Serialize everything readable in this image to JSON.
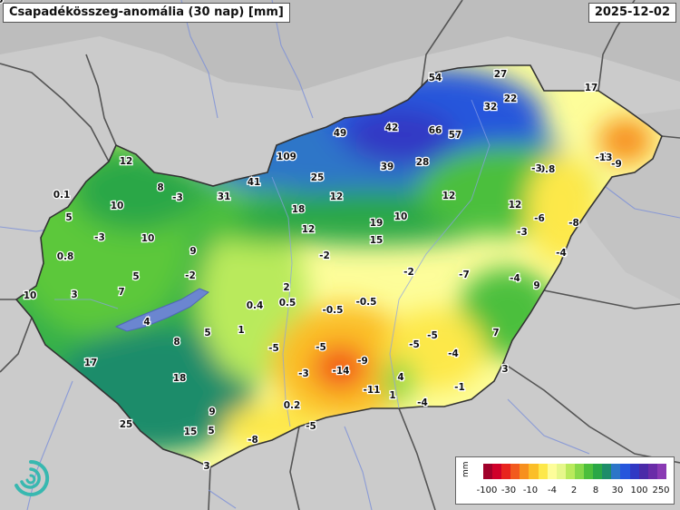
{
  "header": {
    "title": "Csapadékösszeg-anomália (30 nap) [mm]",
    "date": "2025-12-02"
  },
  "legend": {
    "unit": "mm",
    "colors": [
      "#a0002a",
      "#d0002a",
      "#e8241e",
      "#f25a1e",
      "#f7901e",
      "#fbbe28",
      "#fde84a",
      "#fdfd9a",
      "#e6f78a",
      "#b9ea5c",
      "#86d94a",
      "#4cbf3c",
      "#2aa746",
      "#1e8c6a",
      "#2d76c8",
      "#2656dc",
      "#3038c4",
      "#4a2aa8",
      "#6a2ca8",
      "#8a3ab4"
    ],
    "ticks": [
      "-100",
      "-30",
      "-10",
      "-4",
      "2",
      "8",
      "30",
      "100",
      "250"
    ]
  },
  "values": [
    {
      "t": "54"
    },
    {
      "t": "27"
    },
    {
      "t": "17"
    },
    {
      "t": "22"
    },
    {
      "t": "32"
    },
    {
      "t": "42"
    },
    {
      "t": "49"
    },
    {
      "t": "66"
    },
    {
      "t": "57"
    },
    {
      "t": "109"
    },
    {
      "t": "39"
    },
    {
      "t": "28"
    },
    {
      "t": "12"
    },
    {
      "t": "25"
    },
    {
      "t": "41"
    },
    {
      "t": "31"
    },
    {
      "t": "12"
    },
    {
      "t": "12"
    },
    {
      "t": "8"
    },
    {
      "t": "0.1"
    },
    {
      "t": "-3"
    },
    {
      "t": "10"
    },
    {
      "t": "5"
    },
    {
      "t": "18"
    },
    {
      "t": "12"
    },
    {
      "t": "19"
    },
    {
      "t": "10"
    },
    {
      "t": "12"
    },
    {
      "t": "15"
    },
    {
      "t": "10"
    },
    {
      "t": "-3"
    },
    {
      "t": "9"
    },
    {
      "t": "0.8"
    },
    {
      "t": "-2"
    },
    {
      "t": "5"
    },
    {
      "t": "-2"
    },
    {
      "t": "10"
    },
    {
      "t": "3"
    },
    {
      "t": "7"
    },
    {
      "t": "2"
    },
    {
      "t": "0.4"
    },
    {
      "t": "0.5"
    },
    {
      "t": "-0.5"
    },
    {
      "t": "-0.5"
    },
    {
      "t": "4"
    },
    {
      "t": "1"
    },
    {
      "t": "8"
    },
    {
      "t": "5"
    },
    {
      "t": "-5"
    },
    {
      "t": "-5"
    },
    {
      "t": "17"
    },
    {
      "t": "18"
    },
    {
      "t": "-3"
    },
    {
      "t": "-14"
    },
    {
      "t": "-9"
    },
    {
      "t": "4"
    },
    {
      "t": "-11"
    },
    {
      "t": "1"
    },
    {
      "t": "-4"
    },
    {
      "t": "0.2"
    },
    {
      "t": "9"
    },
    {
      "t": "25"
    },
    {
      "t": "15"
    },
    {
      "t": "5"
    },
    {
      "t": "-5"
    },
    {
      "t": "-8"
    },
    {
      "t": "3"
    },
    {
      "t": "-2"
    },
    {
      "t": "-7"
    },
    {
      "t": "-4"
    },
    {
      "t": "-5"
    },
    {
      "t": "-5"
    },
    {
      "t": "-4"
    },
    {
      "t": "-1"
    },
    {
      "t": "7"
    },
    {
      "t": "3"
    },
    {
      "t": "9"
    },
    {
      "t": "-4"
    },
    {
      "t": "-8"
    },
    {
      "t": "-6"
    },
    {
      "t": "-3"
    },
    {
      "t": "0.8"
    },
    {
      "t": "-9"
    },
    {
      "t": "-9"
    },
    {
      "t": "-13"
    },
    {
      "t": "-3"
    },
    {
      "t": "3"
    }
  ]
}
